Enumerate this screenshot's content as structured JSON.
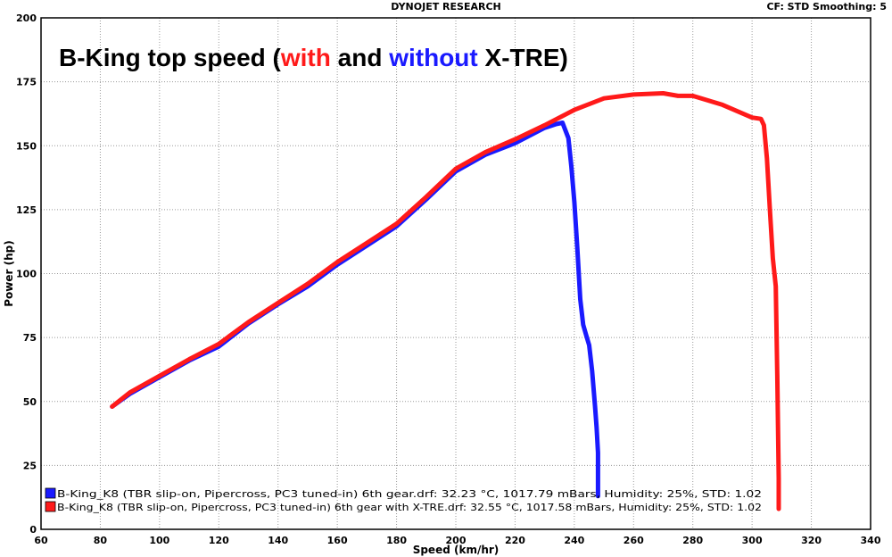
{
  "header": {
    "title": "DYNOJET RESEARCH",
    "cf_smoothing": "CF: STD  Smoothing: 5"
  },
  "chart_data": {
    "type": "line",
    "title_parts": [
      {
        "text": "B-King top speed (",
        "color": "#000000"
      },
      {
        "text": "with",
        "color": "#ff1a1a"
      },
      {
        "text": " and ",
        "color": "#000000"
      },
      {
        "text": "without",
        "color": "#1a1aff"
      },
      {
        "text": " X-TRE)",
        "color": "#000000"
      }
    ],
    "xlabel": "Speed (km/hr)",
    "ylabel": "Power (hp)",
    "xlim": [
      60,
      340
    ],
    "ylim": [
      0,
      200
    ],
    "xticks": [
      60,
      80,
      100,
      120,
      140,
      160,
      180,
      200,
      220,
      240,
      260,
      280,
      300,
      320,
      340
    ],
    "yticks": [
      0,
      25,
      50,
      75,
      100,
      125,
      150,
      175,
      200
    ],
    "grid": true,
    "legend_placement": "bottom-left",
    "series": [
      {
        "name": "B-King_K8 (TBR slip-on, Pipercross, PC3 tuned-in) 6th gear.drf: 32.23 °C, 1017.79 mBars, Humidity: 25%, STD: 1.02",
        "color": "#1a1aff",
        "points": [
          [
            84,
            48
          ],
          [
            90,
            53
          ],
          [
            100,
            59.5
          ],
          [
            110,
            66
          ],
          [
            120,
            71.5
          ],
          [
            130,
            80.5
          ],
          [
            140,
            88
          ],
          [
            150,
            95
          ],
          [
            160,
            103.5
          ],
          [
            170,
            111
          ],
          [
            180,
            118.5
          ],
          [
            190,
            129
          ],
          [
            200,
            140
          ],
          [
            210,
            146.5
          ],
          [
            220,
            151
          ],
          [
            230,
            157
          ],
          [
            234,
            158.5
          ],
          [
            236,
            159
          ],
          [
            238,
            153
          ],
          [
            239,
            142
          ],
          [
            240,
            128
          ],
          [
            241,
            110
          ],
          [
            242,
            90
          ],
          [
            243,
            80
          ],
          [
            244,
            76
          ],
          [
            245,
            72
          ],
          [
            246,
            62
          ],
          [
            247,
            48
          ],
          [
            247.5,
            40
          ],
          [
            248,
            30
          ],
          [
            248,
            13
          ]
        ]
      },
      {
        "name": "B-King_K8 (TBR slip-on, Pipercross, PC3 tuned-in) 6th gear with X-TRE.drf: 32.55 °C, 1017.58 mBars, Humidity: 25%, STD: 1.02",
        "color": "#ff1a1a",
        "points": [
          [
            84,
            48
          ],
          [
            90,
            53.5
          ],
          [
            100,
            60
          ],
          [
            110,
            66.5
          ],
          [
            120,
            72.5
          ],
          [
            130,
            81
          ],
          [
            140,
            88.5
          ],
          [
            150,
            96
          ],
          [
            160,
            104.5
          ],
          [
            170,
            112
          ],
          [
            180,
            119.5
          ],
          [
            190,
            130
          ],
          [
            200,
            141
          ],
          [
            210,
            147.5
          ],
          [
            220,
            152.5
          ],
          [
            230,
            158
          ],
          [
            240,
            164
          ],
          [
            250,
            168.5
          ],
          [
            260,
            170
          ],
          [
            270,
            170.5
          ],
          [
            275,
            169.5
          ],
          [
            280,
            169.5
          ],
          [
            290,
            166
          ],
          [
            300,
            161
          ],
          [
            303,
            160.5
          ],
          [
            304,
            158
          ],
          [
            305,
            145
          ],
          [
            306,
            125
          ],
          [
            307,
            106
          ],
          [
            308,
            95
          ],
          [
            308.5,
            60
          ],
          [
            309,
            20
          ],
          [
            309,
            8
          ]
        ]
      }
    ]
  }
}
